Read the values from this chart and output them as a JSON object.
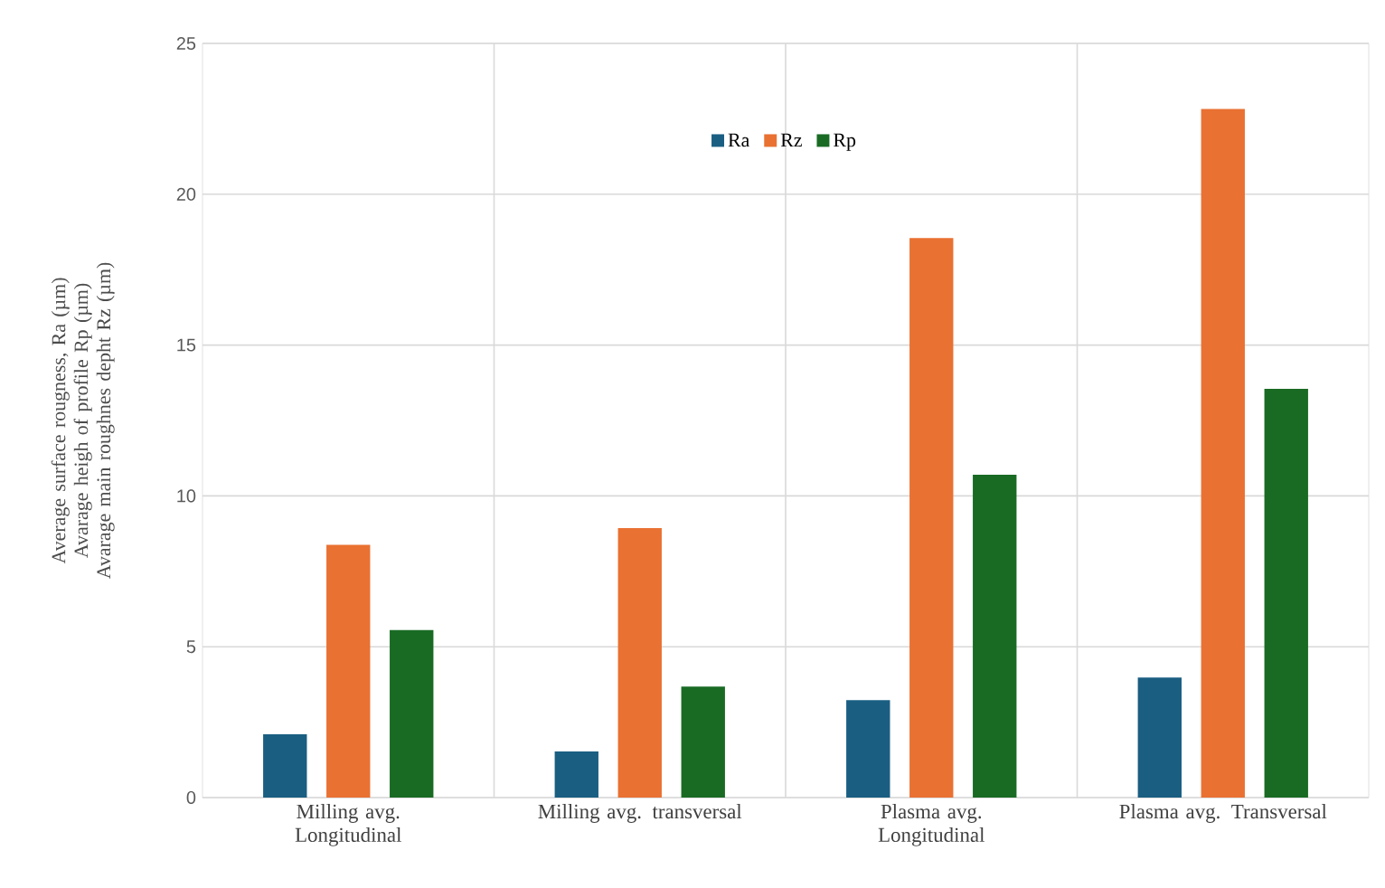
{
  "chart_data": {
    "type": "bar",
    "ylabel": "Average surface rougness, Ra (µm) Avarage heigh of profile Rp (µm) Avarage main roughnes depht Rz (µm)",
    "categories": [
      "Milling avg. Longitudinal",
      "Milling avg. transversal",
      "Plasma avg. Longitudinal",
      "Plasma avg. Transversal"
    ],
    "series": [
      {
        "name": "Ra",
        "color": "#1a5e82",
        "values": [
          2.1,
          1.53,
          3.23,
          3.98
        ]
      },
      {
        "name": "Rz",
        "color": "#e97132",
        "values": [
          8.38,
          8.93,
          18.55,
          22.83
        ]
      },
      {
        "name": "Rp",
        "color": "#196b24",
        "values": [
          5.55,
          3.68,
          10.7,
          13.55
        ]
      }
    ],
    "ylim": [
      0,
      25
    ],
    "yticks": [
      0,
      5,
      10,
      15,
      20,
      25
    ],
    "grid": true,
    "legend": "top"
  }
}
